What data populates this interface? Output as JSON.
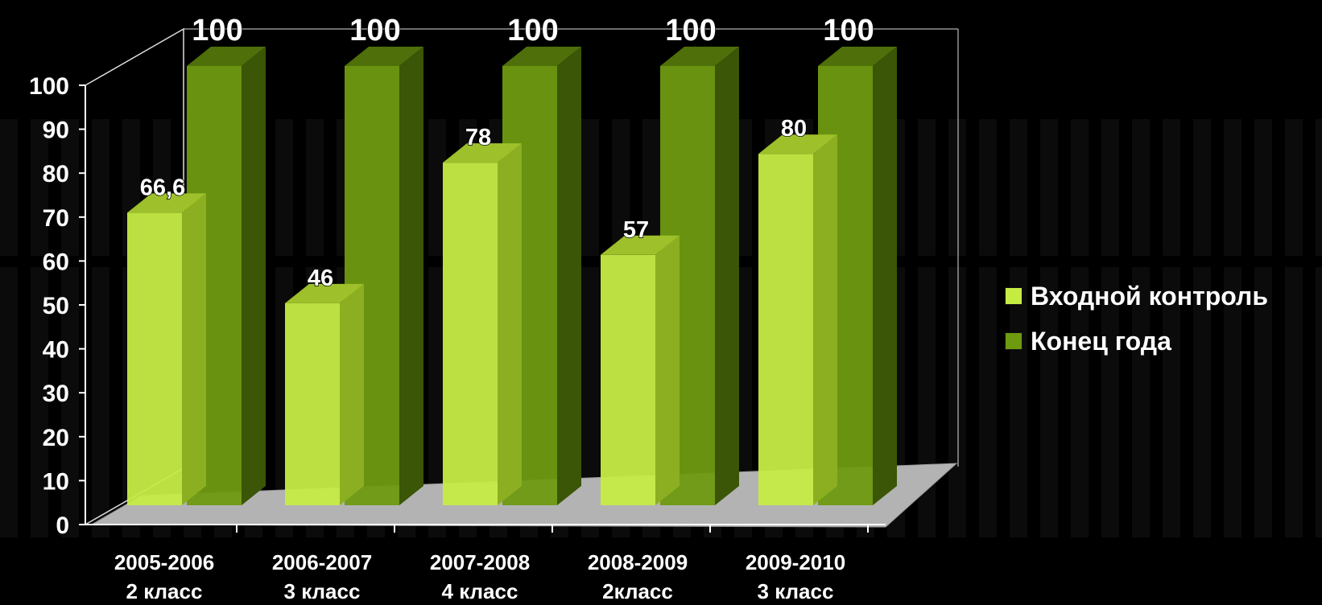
{
  "chart_data": {
    "type": "bar",
    "categories": [
      [
        "2005-2006",
        "2 класс"
      ],
      [
        "2006-2007",
        "3 класс"
      ],
      [
        "2007-2008",
        "4 класс"
      ],
      [
        "2008-2009",
        "2класс"
      ],
      [
        "2009-2010",
        "3 класс"
      ]
    ],
    "series": [
      {
        "name": "Входной контроль",
        "values": [
          66.6,
          46,
          78,
          57,
          80
        ],
        "labels": [
          "66,6",
          "46",
          "78",
          "57",
          "80"
        ],
        "color": "#c6ec44"
      },
      {
        "name": "Конец года",
        "values": [
          100,
          100,
          100,
          100,
          100
        ],
        "labels": [
          "100",
          "100",
          "100",
          "100",
          "100"
        ],
        "color": "#6e9a10"
      }
    ],
    "ylim": [
      0,
      100
    ],
    "yticks": [
      0,
      10,
      20,
      30,
      40,
      50,
      60,
      70,
      80,
      90,
      100
    ],
    "grid": false,
    "legend_position": "right",
    "style": "3d-bars"
  }
}
